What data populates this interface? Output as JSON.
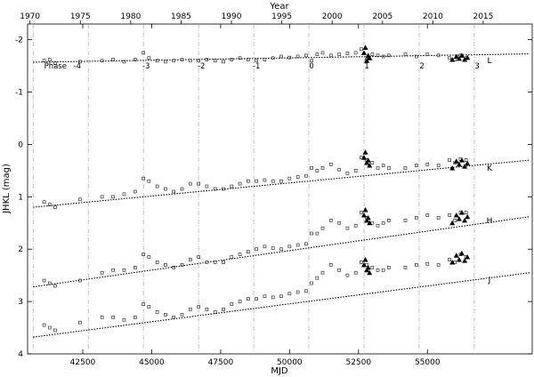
{
  "chart_data": {
    "type": "scatter",
    "x_axis": {
      "label": "MJD",
      "range": [
        40500,
        58800
      ],
      "ticks": [
        42500,
        45000,
        47500,
        50000,
        52500,
        55000
      ],
      "tick_labels": [
        "42500",
        "45000",
        "47500",
        "50000",
        "52500",
        "55000"
      ]
    },
    "x2_axis": {
      "label": "Year",
      "ticks_mjd": [
        40587,
        42413,
        44239,
        46066,
        47892,
        49718,
        51544,
        53371,
        55197,
        57023
      ],
      "tick_labels": [
        "1970",
        "1975",
        "1980",
        "1985",
        "1990",
        "1995",
        "2000",
        "2005",
        "2010",
        "2015"
      ]
    },
    "y_axis": {
      "label": "JHKL (mag)",
      "range": [
        -2.3,
        4.0
      ],
      "inverted": true,
      "ticks": [
        -2,
        -1,
        0,
        1,
        2,
        3,
        4
      ],
      "tick_labels": [
        "-2",
        "-1",
        "0",
        "1",
        "2",
        "3",
        "4"
      ]
    },
    "phase_row": {
      "y": -1.5,
      "heading": "Phase",
      "labels": [
        "-4",
        "-3",
        "-2",
        "-1",
        "0",
        "1",
        "2",
        "3"
      ],
      "mjd": [
        42300,
        44800,
        46800,
        48800,
        50800,
        52800,
        54800,
        56800
      ],
      "line_mjd": [
        40700,
        42700,
        44700,
        46700,
        48700,
        50700,
        52700,
        54700,
        56700
      ]
    },
    "series": [
      {
        "name": "L",
        "label_mjd": 57250,
        "label_y": -1.6,
        "trend": {
          "mjd": [
            40700,
            58700
          ],
          "y": [
            -1.57,
            -1.73
          ]
        }
      },
      {
        "name": "K",
        "label_mjd": 57250,
        "label_y": 0.45,
        "trend": {
          "mjd": [
            40700,
            58700
          ],
          "y": [
            1.2,
            0.3
          ]
        }
      },
      {
        "name": "H",
        "label_mjd": 57250,
        "label_y": 1.45,
        "trend": {
          "mjd": [
            40700,
            58700
          ],
          "y": [
            2.72,
            1.38
          ]
        }
      },
      {
        "name": "J",
        "label_mjd": 57250,
        "label_y": 2.58,
        "trend": {
          "mjd": [
            40700,
            58700
          ],
          "y": [
            3.68,
            2.45
          ]
        }
      }
    ],
    "observations": {
      "mjd": [
        41100,
        41300,
        41500,
        42400,
        43200,
        43600,
        44000,
        44400,
        44700,
        44900,
        45200,
        45500,
        45800,
        46100,
        46400,
        46700,
        47000,
        47300,
        47600,
        47900,
        48200,
        48500,
        48800,
        49100,
        49400,
        49700,
        50000,
        50300,
        50600,
        50800,
        51000,
        51200,
        51500,
        51800,
        52100,
        52400,
        52600,
        52800,
        53000,
        53200,
        53400,
        53600,
        54200,
        54600,
        55000,
        55400,
        55800,
        56000,
        56200,
        56400
      ],
      "L": [
        -1.6,
        -1.62,
        -1.55,
        -1.58,
        -1.6,
        -1.62,
        -1.58,
        -1.62,
        -1.75,
        -1.65,
        -1.6,
        -1.58,
        -1.6,
        -1.62,
        -1.6,
        -1.6,
        -1.62,
        -1.6,
        -1.58,
        -1.62,
        -1.65,
        -1.62,
        -1.6,
        -1.62,
        -1.65,
        -1.68,
        -1.66,
        -1.68,
        -1.7,
        -1.6,
        -1.72,
        -1.75,
        -1.7,
        -1.72,
        -1.74,
        -1.75,
        -1.82,
        -1.62,
        -1.72,
        -1.7,
        -1.68,
        -1.7,
        -1.72,
        -1.68,
        -1.72,
        -1.7,
        -1.65,
        -1.62,
        -1.7,
        -1.65
      ],
      "K": [
        1.1,
        1.15,
        1.2,
        1.05,
        1.0,
        1.0,
        0.95,
        0.9,
        0.65,
        0.7,
        0.8,
        0.85,
        0.9,
        0.85,
        0.75,
        0.75,
        0.8,
        0.85,
        0.85,
        0.8,
        0.75,
        0.7,
        0.7,
        0.68,
        0.7,
        0.7,
        0.65,
        0.62,
        0.6,
        0.45,
        0.5,
        0.45,
        0.38,
        0.48,
        0.55,
        0.5,
        0.25,
        0.3,
        0.35,
        0.45,
        0.4,
        0.45,
        0.45,
        0.4,
        0.38,
        0.4,
        0.3,
        0.35,
        0.28,
        0.3
      ],
      "H": [
        2.6,
        2.65,
        2.7,
        2.6,
        2.45,
        2.4,
        2.4,
        2.35,
        2.1,
        2.15,
        2.25,
        2.3,
        2.35,
        2.3,
        2.2,
        2.15,
        2.25,
        2.25,
        2.25,
        2.15,
        2.1,
        2.05,
        2.0,
        1.95,
        1.98,
        2.0,
        1.95,
        1.92,
        1.9,
        1.7,
        1.7,
        1.6,
        1.45,
        1.5,
        1.6,
        1.55,
        1.3,
        1.4,
        1.5,
        1.55,
        1.5,
        1.45,
        1.45,
        1.4,
        1.35,
        1.4,
        1.35,
        1.45,
        1.3,
        1.3
      ],
      "J": [
        3.45,
        3.5,
        3.55,
        3.4,
        3.3,
        3.3,
        3.35,
        3.3,
        3.05,
        3.1,
        3.2,
        3.25,
        3.3,
        3.25,
        3.15,
        3.1,
        3.15,
        3.2,
        3.15,
        3.05,
        3.0,
        2.95,
        2.95,
        2.9,
        2.92,
        2.9,
        2.85,
        2.82,
        2.8,
        2.65,
        2.55,
        2.45,
        2.3,
        2.4,
        2.5,
        2.45,
        2.25,
        2.3,
        2.35,
        2.4,
        2.4,
        2.35,
        2.35,
        2.3,
        2.28,
        2.3,
        2.2,
        2.25,
        2.1,
        2.15
      ]
    },
    "recent_observations": {
      "mjd": [
        52700,
        52750,
        52800,
        52850,
        52900,
        55900,
        56050,
        56150,
        56250,
        56350,
        56450
      ],
      "L": [
        -1.75,
        -1.85,
        -1.6,
        -1.7,
        -1.65,
        -1.62,
        -1.68,
        -1.64,
        -1.7,
        -1.62,
        -1.66
      ],
      "K": [
        0.25,
        0.15,
        0.35,
        0.3,
        0.4,
        0.45,
        0.32,
        0.38,
        0.3,
        0.42,
        0.36
      ],
      "H": [
        1.35,
        1.25,
        1.45,
        1.4,
        1.5,
        1.5,
        1.35,
        1.42,
        1.3,
        1.45,
        1.38
      ],
      "J": [
        2.3,
        2.2,
        2.4,
        2.35,
        2.45,
        2.25,
        2.12,
        2.2,
        2.08,
        2.22,
        2.15
      ]
    }
  }
}
